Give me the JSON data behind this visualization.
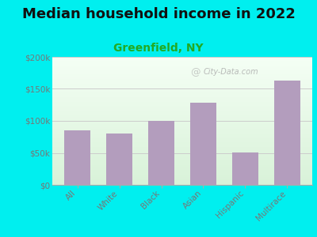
{
  "title": "Median household income in 2022",
  "subtitle": "Greenfield, NY",
  "categories": [
    "All",
    "White",
    "Black",
    "Asian",
    "Hispanic",
    "Multirace"
  ],
  "values": [
    85000,
    80000,
    100000,
    128000,
    51000,
    163000
  ],
  "bar_color": "#b39dbd",
  "background_outer": "#00EFEF",
  "ylim": [
    0,
    200000
  ],
  "yticks": [
    0,
    50000,
    100000,
    150000,
    200000
  ],
  "ytick_labels": [
    "$0",
    "$50k",
    "$100k",
    "$150k",
    "$200k"
  ],
  "title_fontsize": 13,
  "subtitle_fontsize": 10,
  "watermark": "City-Data.com",
  "grid_color": "#cccccc",
  "tick_label_color": "#777777",
  "subtitle_color": "#22aa22"
}
